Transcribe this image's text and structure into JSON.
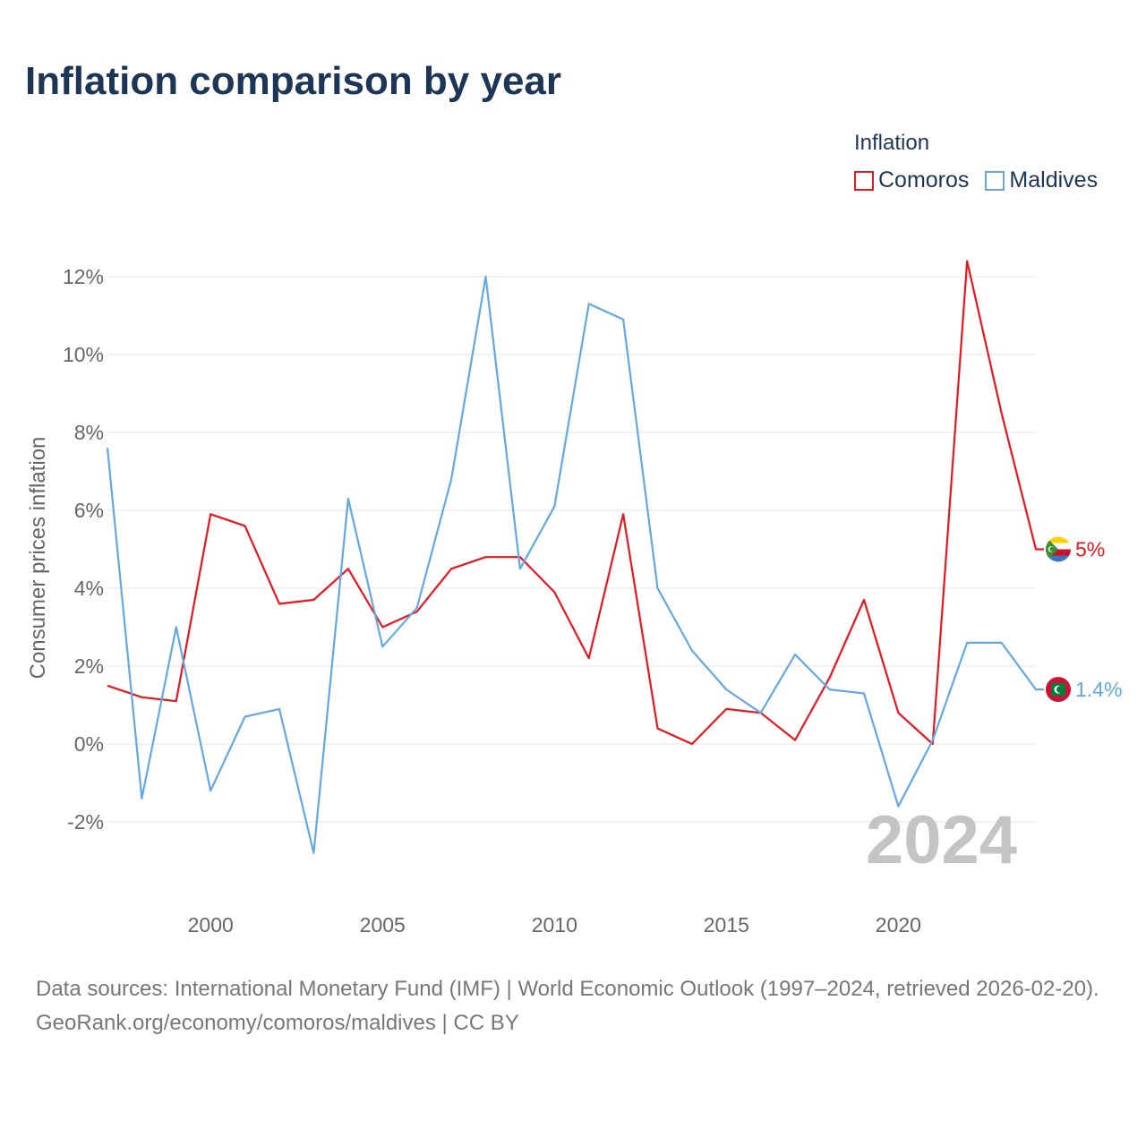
{
  "title": "Inflation comparison by year",
  "legend_title": "Inflation",
  "source_line1": "Data sources: International Monetary Fund (IMF) | World Economic Outlook (1997–2024, retrieved 2026-02-20).",
  "source_line2": "GeoRank.org/economy/comoros/maldives | CC BY",
  "colors": {
    "comoros": "#e8161f",
    "maldives": "#62a8e5",
    "title": "#1d3557"
  },
  "chart_data": {
    "type": "line",
    "title": "Inflation comparison by year",
    "ylabel": "Consumer prices inflation",
    "xlabel": "",
    "xlim": [
      1997,
      2024
    ],
    "ylim": [
      -3.5,
      12.5
    ],
    "y_ticks": [
      -2,
      0,
      2,
      4,
      6,
      8,
      10,
      12
    ],
    "y_tick_labels": [
      "-2%",
      "0%",
      "2%",
      "4%",
      "6%",
      "8%",
      "10%",
      "12%"
    ],
    "x_ticks": [
      2000,
      2005,
      2010,
      2015,
      2020
    ],
    "x_tick_labels": [
      "2000",
      "2005",
      "2010",
      "2015",
      "2020"
    ],
    "year_watermark": "2024",
    "x": [
      1997,
      1998,
      1999,
      2000,
      2001,
      2002,
      2003,
      2004,
      2005,
      2006,
      2007,
      2008,
      2009,
      2010,
      2011,
      2012,
      2013,
      2014,
      2015,
      2016,
      2017,
      2018,
      2019,
      2020,
      2021,
      2022,
      2023,
      2024
    ],
    "series": [
      {
        "name": "Comoros",
        "color": "#e8161f",
        "end_label": "5%",
        "values": [
          1.5,
          1.2,
          1.1,
          5.9,
          5.6,
          3.6,
          3.7,
          4.5,
          3.0,
          3.4,
          4.5,
          4.8,
          4.8,
          3.9,
          2.2,
          5.9,
          0.4,
          0.0,
          0.9,
          0.8,
          0.1,
          1.7,
          3.7,
          0.8,
          0.0,
          12.4,
          8.5,
          5.0
        ]
      },
      {
        "name": "Maldives",
        "color": "#62a8e5",
        "end_label": "1.4%",
        "values": [
          7.6,
          -1.4,
          3.0,
          -1.2,
          0.7,
          0.9,
          -2.8,
          6.3,
          2.5,
          3.5,
          6.8,
          12.0,
          4.5,
          6.1,
          11.3,
          10.9,
          4.0,
          2.4,
          1.4,
          0.8,
          2.3,
          1.4,
          1.3,
          -1.6,
          0.1,
          2.6,
          2.6,
          1.4
        ]
      }
    ]
  }
}
